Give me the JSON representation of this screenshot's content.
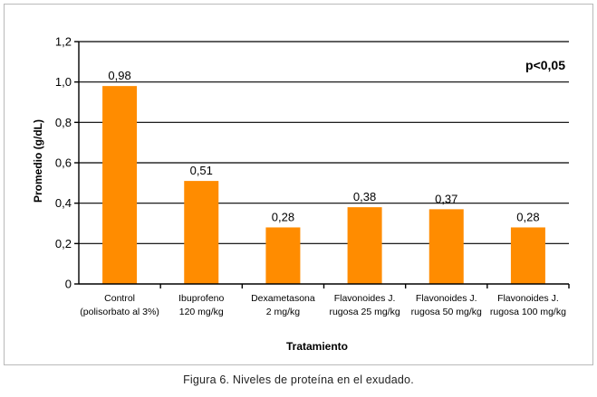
{
  "caption": "Figura  6. Niveles de proteína en el exudado.",
  "chart_data": {
    "type": "bar",
    "categories": [
      [
        "Control",
        "(polisorbato al 3%)"
      ],
      [
        "Ibuprofeno",
        "120 mg/kg"
      ],
      [
        "Dexametasona",
        "2 mg/kg"
      ],
      [
        "Flavonoides J.",
        "rugosa 25 mg/kg"
      ],
      [
        "Flavonoides J.",
        "rugosa 50 mg/kg"
      ],
      [
        "Flavonoides J.",
        "rugosa 100 mg/kg"
      ]
    ],
    "values": [
      0.98,
      0.51,
      0.28,
      0.38,
      0.37,
      0.28
    ],
    "data_labels": [
      "0,98",
      "0,51",
      "0,28",
      "0,38",
      "0,37",
      "0,28"
    ],
    "y_ticks": [
      "0",
      "0,2",
      "0,4",
      "0,6",
      "0,8",
      "1,0",
      "1,2"
    ],
    "ylim": [
      0,
      1.2
    ],
    "ylabel": "Promedio (g/dL)",
    "xlabel": "Tratamiento",
    "annotation": "p<0,05",
    "grid": true,
    "bar_color": "#FF8C00"
  }
}
